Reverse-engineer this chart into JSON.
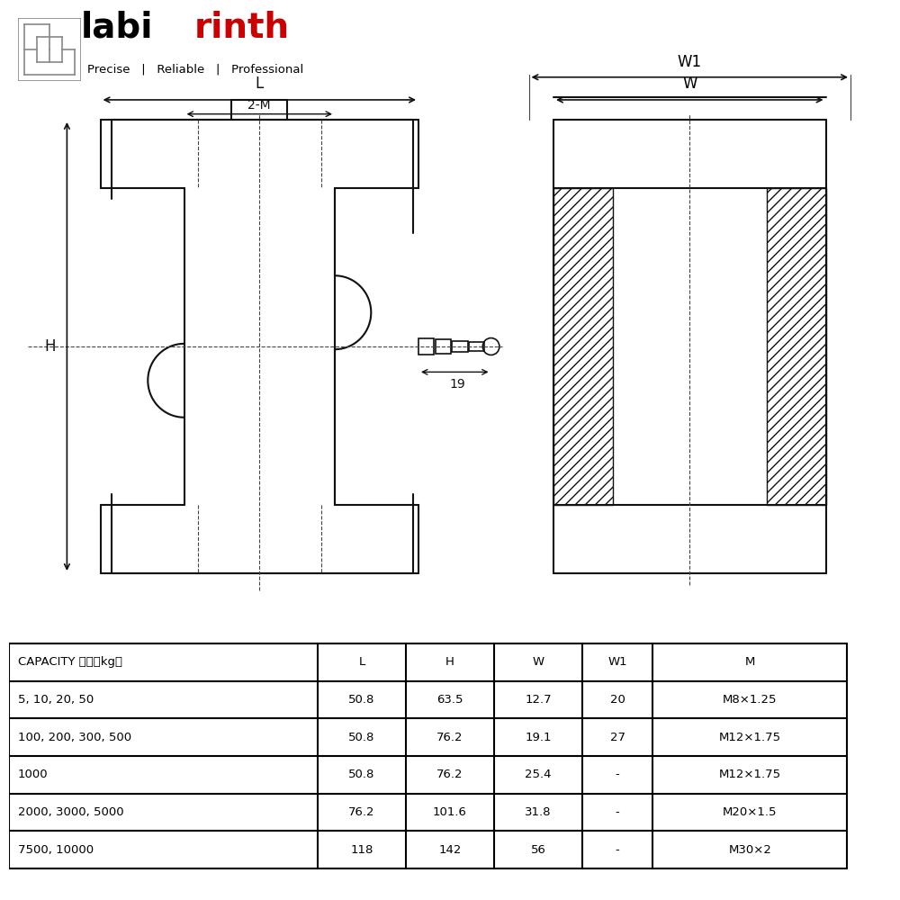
{
  "logo_text_labi": "labi",
  "logo_text_rinth": "rinth",
  "logo_sub": "Precise   |   Reliable   |   Professional",
  "table_headers": [
    "CAPACITY 载荷（kg）",
    "L",
    "H",
    "W",
    "W1",
    "M"
  ],
  "table_rows": [
    [
      "5, 10, 20, 50",
      "50.8",
      "63.5",
      "12.7",
      "20",
      "M8×1.25"
    ],
    [
      "100, 200, 300, 500",
      "50.8",
      "76.2",
      "19.1",
      "27",
      "M12×1.75"
    ],
    [
      "1000",
      "50.8",
      "76.2",
      "25.4",
      "-",
      "M12×1.75"
    ],
    [
      "2000, 3000, 5000",
      "76.2",
      "101.6",
      "31.8",
      "-",
      "M20×1.5"
    ],
    [
      "7500, 10000",
      "118",
      "142",
      "56",
      "-",
      "M30×2"
    ]
  ],
  "bg_color": "#ffffff",
  "line_color": "#1a1a1a",
  "table_line_color": "#000000",
  "logo_black": "#000000",
  "logo_red": "#cc0000",
  "logo_gray": "#888888"
}
